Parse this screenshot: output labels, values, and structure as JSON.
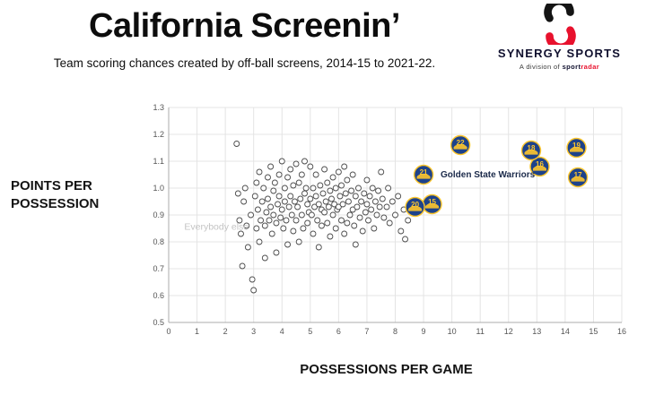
{
  "header": {
    "title": "California Screenin’",
    "subtitle": "Team scoring chances created by off-ball screens, 2014-15 to 2021-22."
  },
  "logo": {
    "brand_primary": "SYNERGY",
    "brand_secondary": "SPORTS",
    "tagline_prefix": "A division of ",
    "tagline_sport": "sport",
    "tagline_radar": "radar",
    "colors": {
      "black": "#141414",
      "red": "#e8112d"
    }
  },
  "chart_data": {
    "type": "scatter",
    "title": "California Screenin’",
    "xlabel": "POSSESSIONS PER GAME",
    "ylabel": "POINTS PER POSSESSION",
    "xlim": [
      0,
      16
    ],
    "ylim": [
      0.5,
      1.3
    ],
    "x_ticks": [
      0,
      1,
      2,
      3,
      4,
      5,
      6,
      7,
      8,
      9,
      10,
      11,
      12,
      13,
      14,
      15,
      16
    ],
    "y_ticks": [
      0.5,
      0.6,
      0.7,
      0.8,
      0.9,
      1.0,
      1.1,
      1.2,
      1.3
    ],
    "grid": true,
    "annotations": [
      {
        "text": "Golden State Warriors",
        "x": 9.6,
        "y": 1.04,
        "color": "#1b2a4a",
        "weight": "bold",
        "size": 10
      },
      {
        "text": "Everybody else",
        "x": 0.55,
        "y": 0.845,
        "color": "#c4c4c4",
        "weight": "normal",
        "size": 10.5
      }
    ],
    "series": [
      {
        "name": "Everybody else",
        "marker": "open-circle",
        "color": "#4a4a4a",
        "points": [
          [
            2.4,
            1.165
          ],
          [
            2.45,
            0.98
          ],
          [
            2.5,
            0.88
          ],
          [
            2.55,
            0.83
          ],
          [
            2.6,
            0.71
          ],
          [
            2.65,
            0.95
          ],
          [
            2.7,
            1.0
          ],
          [
            2.75,
            0.86
          ],
          [
            2.8,
            0.78
          ],
          [
            2.9,
            0.9
          ],
          [
            2.95,
            0.66
          ],
          [
            3.0,
            0.62
          ],
          [
            3.05,
            0.97
          ],
          [
            3.1,
            1.02
          ],
          [
            3.1,
            0.85
          ],
          [
            3.15,
            0.92
          ],
          [
            3.2,
            1.06
          ],
          [
            3.2,
            0.8
          ],
          [
            3.25,
            0.88
          ],
          [
            3.3,
            0.95
          ],
          [
            3.35,
            1.0
          ],
          [
            3.4,
            0.86
          ],
          [
            3.4,
            0.74
          ],
          [
            3.45,
            0.91
          ],
          [
            3.5,
            1.04
          ],
          [
            3.5,
            0.96
          ],
          [
            3.55,
            0.88
          ],
          [
            3.6,
            1.08
          ],
          [
            3.6,
            0.93
          ],
          [
            3.65,
            0.83
          ],
          [
            3.7,
            0.99
          ],
          [
            3.7,
            0.9
          ],
          [
            3.75,
            1.02
          ],
          [
            3.8,
            0.87
          ],
          [
            3.8,
            0.76
          ],
          [
            3.85,
            0.94
          ],
          [
            3.9,
            1.05
          ],
          [
            3.9,
            0.97
          ],
          [
            3.95,
            0.89
          ],
          [
            4.0,
            1.1
          ],
          [
            4.0,
            0.92
          ],
          [
            4.05,
            0.85
          ],
          [
            4.1,
            1.0
          ],
          [
            4.1,
            0.95
          ],
          [
            4.15,
            0.88
          ],
          [
            4.2,
            1.04
          ],
          [
            4.2,
            0.79
          ],
          [
            4.25,
            0.93
          ],
          [
            4.3,
            1.07
          ],
          [
            4.3,
            0.97
          ],
          [
            4.35,
            0.9
          ],
          [
            4.4,
            0.84
          ],
          [
            4.4,
            1.01
          ],
          [
            4.45,
            0.95
          ],
          [
            4.5,
            1.09
          ],
          [
            4.5,
            0.88
          ],
          [
            4.55,
            0.93
          ],
          [
            4.6,
            1.02
          ],
          [
            4.6,
            0.8
          ],
          [
            4.65,
            0.96
          ],
          [
            4.7,
            1.05
          ],
          [
            4.7,
            0.9
          ],
          [
            4.75,
            0.85
          ],
          [
            4.8,
            1.1
          ],
          [
            4.8,
            0.98
          ],
          [
            4.85,
            1.0
          ],
          [
            4.9,
            0.87
          ],
          [
            4.9,
            0.94
          ],
          [
            4.95,
            0.91
          ],
          [
            5.0,
            1.08
          ],
          [
            5.0,
            0.96
          ],
          [
            5.05,
            0.9
          ],
          [
            5.1,
            1.0
          ],
          [
            5.1,
            0.83
          ],
          [
            5.15,
            0.93
          ],
          [
            5.2,
            1.05
          ],
          [
            5.2,
            0.97
          ],
          [
            5.25,
            0.88
          ],
          [
            5.3,
            0.94
          ],
          [
            5.3,
            0.78
          ],
          [
            5.35,
            1.01
          ],
          [
            5.4,
            0.92
          ],
          [
            5.4,
            0.86
          ],
          [
            5.45,
            0.98
          ],
          [
            5.5,
            1.07
          ],
          [
            5.5,
            0.91
          ],
          [
            5.55,
            0.95
          ],
          [
            5.6,
            1.02
          ],
          [
            5.6,
            0.87
          ],
          [
            5.65,
            0.93
          ],
          [
            5.7,
            0.99
          ],
          [
            5.7,
            0.82
          ],
          [
            5.75,
            0.96
          ],
          [
            5.8,
            1.04
          ],
          [
            5.8,
            0.9
          ],
          [
            5.85,
            0.94
          ],
          [
            5.9,
            1.0
          ],
          [
            5.9,
            0.85
          ],
          [
            5.95,
            0.92
          ],
          [
            6.0,
            1.06
          ],
          [
            6.0,
            0.93
          ],
          [
            6.05,
            0.97
          ],
          [
            6.1,
            0.88
          ],
          [
            6.1,
            1.01
          ],
          [
            6.15,
            0.94
          ],
          [
            6.2,
            1.08
          ],
          [
            6.2,
            0.83
          ],
          [
            6.25,
            0.98
          ],
          [
            6.3,
            1.03
          ],
          [
            6.3,
            0.87
          ],
          [
            6.35,
            0.95
          ],
          [
            6.4,
            0.9
          ],
          [
            6.45,
            0.99
          ],
          [
            6.5,
            1.05
          ],
          [
            6.5,
            0.92
          ],
          [
            6.55,
            0.86
          ],
          [
            6.6,
            0.97
          ],
          [
            6.6,
            0.79
          ],
          [
            6.65,
            0.93
          ],
          [
            6.7,
            1.0
          ],
          [
            6.75,
            0.89
          ],
          [
            6.8,
            0.95
          ],
          [
            6.85,
            0.84
          ],
          [
            6.9,
            0.98
          ],
          [
            6.95,
            0.91
          ],
          [
            7.0,
            1.03
          ],
          [
            7.0,
            0.94
          ],
          [
            7.05,
            0.88
          ],
          [
            7.1,
            0.97
          ],
          [
            7.15,
            0.92
          ],
          [
            7.2,
            1.0
          ],
          [
            7.25,
            0.85
          ],
          [
            7.3,
            0.95
          ],
          [
            7.35,
            0.9
          ],
          [
            7.4,
            0.99
          ],
          [
            7.45,
            0.93
          ],
          [
            7.5,
            1.06
          ],
          [
            7.55,
            0.96
          ],
          [
            7.6,
            0.89
          ],
          [
            7.7,
            0.93
          ],
          [
            7.75,
            1.0
          ],
          [
            7.8,
            0.87
          ],
          [
            7.9,
            0.95
          ],
          [
            8.0,
            0.9
          ],
          [
            8.1,
            0.97
          ],
          [
            8.2,
            0.84
          ],
          [
            8.3,
            0.92
          ],
          [
            8.35,
            0.81
          ],
          [
            8.45,
            0.88
          ]
        ]
      },
      {
        "name": "Golden State Warriors",
        "marker": "badge",
        "fill": "#1D428A",
        "accent": "#FFC72C",
        "points": [
          {
            "label": "15",
            "x": 9.3,
            "y": 0.94
          },
          {
            "label": "16",
            "x": 13.1,
            "y": 1.08
          },
          {
            "label": "17",
            "x": 14.45,
            "y": 1.04
          },
          {
            "label": "18",
            "x": 12.8,
            "y": 1.14
          },
          {
            "label": "19",
            "x": 14.4,
            "y": 1.15
          },
          {
            "label": "20",
            "x": 8.7,
            "y": 0.93
          },
          {
            "label": "21",
            "x": 9.0,
            "y": 1.05
          },
          {
            "label": "22",
            "x": 10.3,
            "y": 1.16
          }
        ]
      }
    ]
  }
}
